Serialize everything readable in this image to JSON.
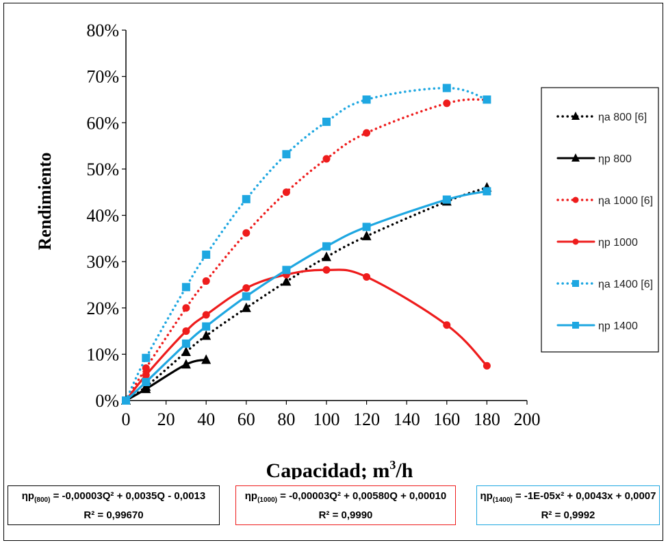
{
  "chart_data": {
    "type": "line",
    "xlabel": "Capacidad; m³/h",
    "xlabel_main": "Capacidad; m",
    "xlabel_sup": "3",
    "xlabel_tail": "/h",
    "ylabel": "Rendimiento",
    "xlim": [
      0,
      200
    ],
    "ylim": [
      0,
      0.8
    ],
    "x_ticks": [
      "0",
      "20",
      "40",
      "60",
      "80",
      "100",
      "120",
      "140",
      "160",
      "180",
      "200"
    ],
    "y_ticks": [
      "0%",
      "10%",
      "20%",
      "30%",
      "40%",
      "50%",
      "60%",
      "70%",
      "80%"
    ],
    "grid": false,
    "legend_position": "right",
    "series": [
      {
        "name": "ηa 800 [6]",
        "color": "#000000",
        "style": "dotted",
        "marker": "triangle",
        "x": [
          0,
          10,
          30,
          40,
          60,
          80,
          100,
          120,
          160,
          180
        ],
        "y": [
          0.0,
          0.03,
          0.105,
          0.14,
          0.2,
          0.257,
          0.31,
          0.355,
          0.43,
          0.46
        ]
      },
      {
        "name": "ηp 800",
        "color": "#000000",
        "style": "solid",
        "marker": "triangle",
        "x": [
          0,
          10,
          30,
          40
        ],
        "y": [
          0.0,
          0.025,
          0.078,
          0.088
        ]
      },
      {
        "name": "ηa 1000 [6]",
        "color": "#ee1c1c",
        "style": "dotted",
        "marker": "circle",
        "x": [
          0,
          10,
          30,
          40,
          60,
          80,
          100,
          120,
          160,
          180
        ],
        "y": [
          0.0,
          0.07,
          0.2,
          0.258,
          0.362,
          0.45,
          0.522,
          0.578,
          0.642,
          0.65
        ]
      },
      {
        "name": "ηp 1000",
        "color": "#ee1c1c",
        "style": "solid",
        "marker": "circle",
        "x": [
          0,
          10,
          30,
          40,
          60,
          80,
          100,
          120,
          160,
          180
        ],
        "y": [
          0.0,
          0.055,
          0.15,
          0.185,
          0.243,
          0.272,
          0.282,
          0.267,
          0.163,
          0.075
        ]
      },
      {
        "name": "ηa 1400 [6]",
        "color": "#1ea7e1",
        "style": "dotted",
        "marker": "square",
        "x": [
          0,
          10,
          30,
          40,
          60,
          80,
          100,
          120,
          160,
          180
        ],
        "y": [
          0.0,
          0.092,
          0.245,
          0.315,
          0.435,
          0.532,
          0.602,
          0.65,
          0.675,
          0.65
        ]
      },
      {
        "name": "ηp 1400",
        "color": "#1ea7e1",
        "style": "solid",
        "marker": "square",
        "x": [
          0,
          10,
          30,
          40,
          60,
          80,
          100,
          120,
          160,
          180
        ],
        "y": [
          0.0,
          0.04,
          0.123,
          0.16,
          0.225,
          0.282,
          0.333,
          0.375,
          0.434,
          0.452
        ]
      }
    ]
  },
  "equations": [
    {
      "prefix": "ηp",
      "subscript": "(800)",
      "formula": " = -0,00003Q² + 0,0035Q - 0,0013",
      "r2": "R² = 0,99670",
      "border_color": "#000000"
    },
    {
      "prefix": "ηp",
      "subscript": "(1000)",
      "formula": " = -0,00003Q² + 0,00580Q + 0,00010",
      "r2": "R² = 0,9990",
      "border_color": "#ee1c1c"
    },
    {
      "prefix": "ηp",
      "subscript": "(1400)",
      "formula": " = -1E-05x² + 0,0043x + 0,0007",
      "r2": "R² = 0,9992",
      "border_color": "#1ea7e1"
    }
  ]
}
